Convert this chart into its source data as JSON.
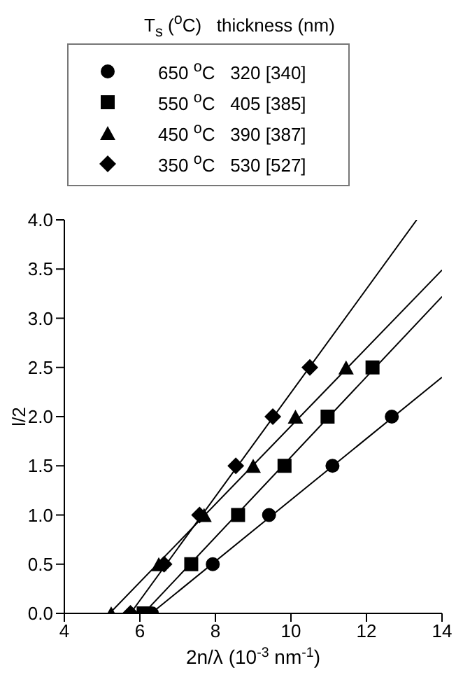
{
  "chart_data": {
    "type": "scatter",
    "xlabel": "2n/λ (10$^{-3}$ nm$^{-1}$)",
    "ylabel": "l/2",
    "legend_title": "T$_{s}$ ($^{o}$C)   thickness (nm)",
    "legend": "top",
    "grid": false,
    "xlim": [
      4,
      14
    ],
    "xticks": [
      4,
      6,
      8,
      10,
      12,
      14
    ],
    "ylim": [
      0,
      4
    ],
    "yticks": [
      {
        "value": 0,
        "label": "0.0"
      },
      0.5,
      {
        "value": 1,
        "label": "1.0"
      },
      1.5,
      {
        "value": 2,
        "label": "2.0"
      },
      2.5,
      {
        "value": 3,
        "label": "3.0"
      },
      3.5,
      {
        "value": 4,
        "label": "4.0"
      }
    ],
    "series": [
      {
        "name": "650 $^{o}$C   320 [340]",
        "marker": "circle",
        "color": "#000000",
        "x": [
          6.32,
          7.93,
          9.42,
          11.1,
          12.67
        ],
        "values": [
          0,
          0.5,
          1,
          1.5,
          2
        ]
      },
      {
        "name": "550 $^{o}$C   405 [385]",
        "marker": "square",
        "color": "#000000",
        "x": [
          6.1,
          7.36,
          8.6,
          9.83,
          10.97,
          12.16
        ],
        "values": [
          0,
          0.5,
          1,
          1.5,
          2,
          2.5
        ]
      },
      {
        "name": "450 $^{o}$C   390 [387]",
        "marker": "triangle",
        "color": "#000000",
        "x": [
          5.24,
          6.5,
          7.7,
          9.0,
          10.12,
          11.46
        ],
        "values": [
          0,
          0.5,
          1,
          1.5,
          2,
          2.5
        ]
      },
      {
        "name": "350 $^{o}$C   530 [527]",
        "marker": "diamond",
        "color": "#000000",
        "x": [
          5.75,
          6.64,
          7.58,
          8.54,
          9.52,
          10.5
        ],
        "values": [
          0,
          0.5,
          1,
          1.5,
          2,
          2.5
        ]
      },
      {
        "type": "line",
        "marker": "none",
        "color": "#000000",
        "x": [
          6.3,
          14
        ],
        "values": [
          0,
          2.4
        ]
      },
      {
        "type": "line",
        "marker": "none",
        "color": "#000000",
        "x": [
          6.1,
          14
        ],
        "values": [
          0,
          3.22
        ]
      },
      {
        "type": "line",
        "marker": "none",
        "color": "#000000",
        "x": [
          5.2,
          14
        ],
        "values": [
          0,
          3.49
        ]
      },
      {
        "type": "line",
        "marker": "none",
        "color": "#000000",
        "x": [
          5.75,
          13.33
        ],
        "values": [
          0,
          4
        ]
      }
    ]
  }
}
